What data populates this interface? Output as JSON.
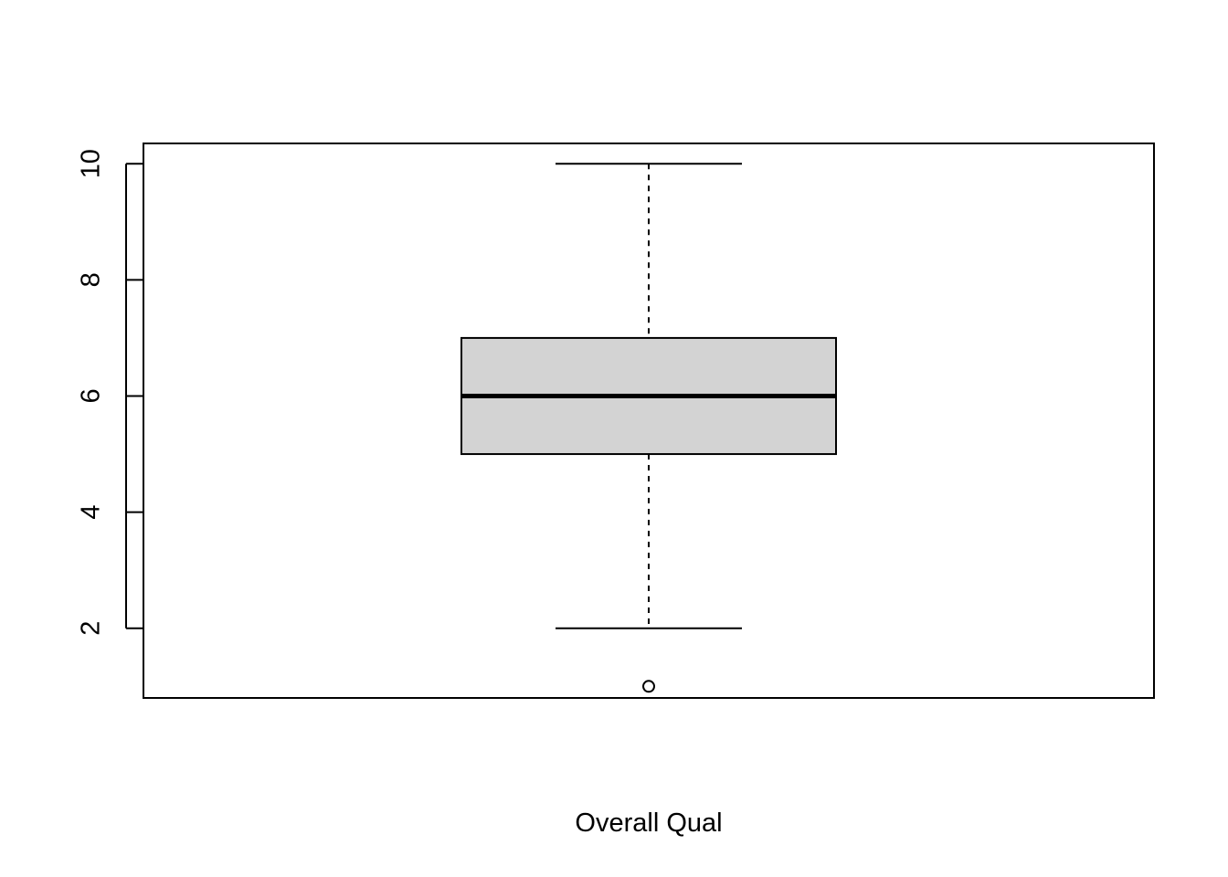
{
  "chart_data": {
    "type": "box",
    "xlabel": "Overall Qual",
    "ylabel": "",
    "title": "",
    "ylim": [
      0.8,
      10.35
    ],
    "yticks": [
      2,
      4,
      6,
      8,
      10
    ],
    "grid": false,
    "box": {
      "whisker_low": 2,
      "q1": 5,
      "median": 6,
      "q3": 7,
      "whisker_high": 10,
      "outliers": [
        1
      ]
    },
    "colors": {
      "box_fill": "#d3d3d3",
      "stroke": "#000000"
    }
  }
}
